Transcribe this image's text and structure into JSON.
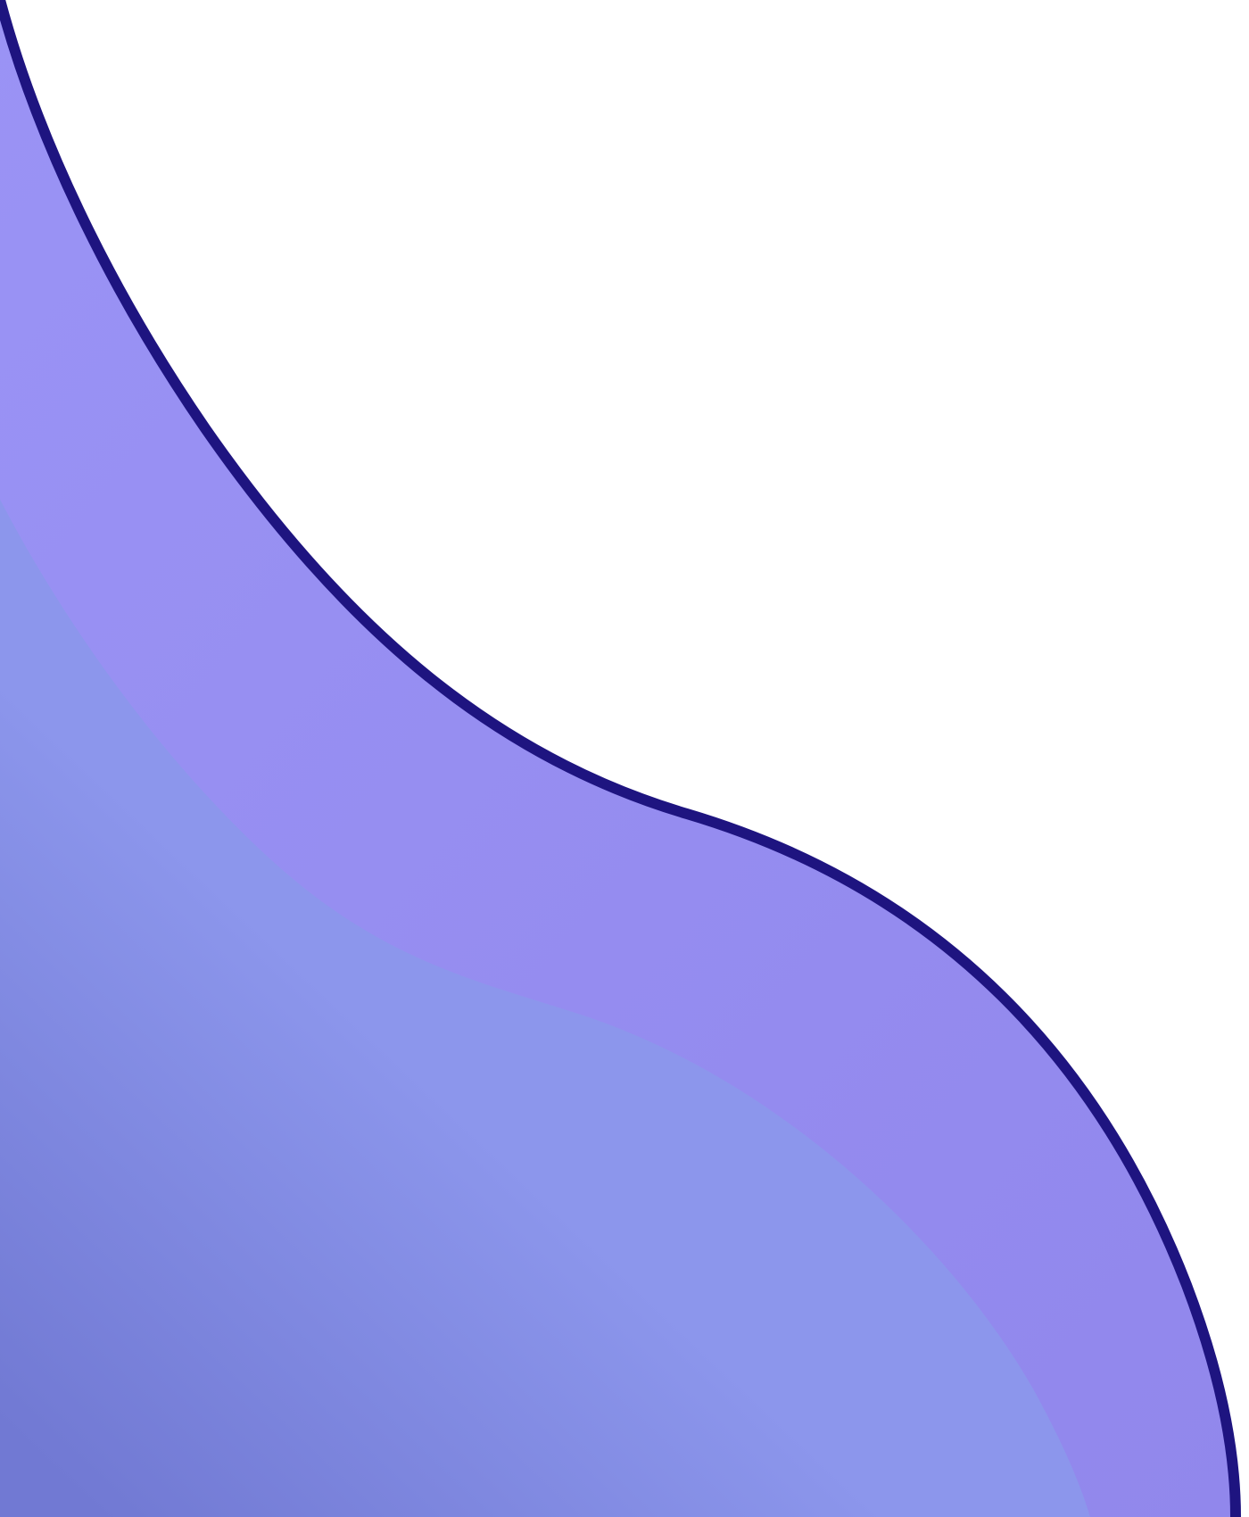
{
  "artwork": {
    "kind": "decorative-wave-background",
    "colors": {
      "background": "#ffffff",
      "outline": "#1e1480",
      "band_light": "#9a93f5",
      "band_mid": "#9187ec",
      "fill_light": "#8c96ec",
      "fill_dark": "#7179d3"
    }
  }
}
